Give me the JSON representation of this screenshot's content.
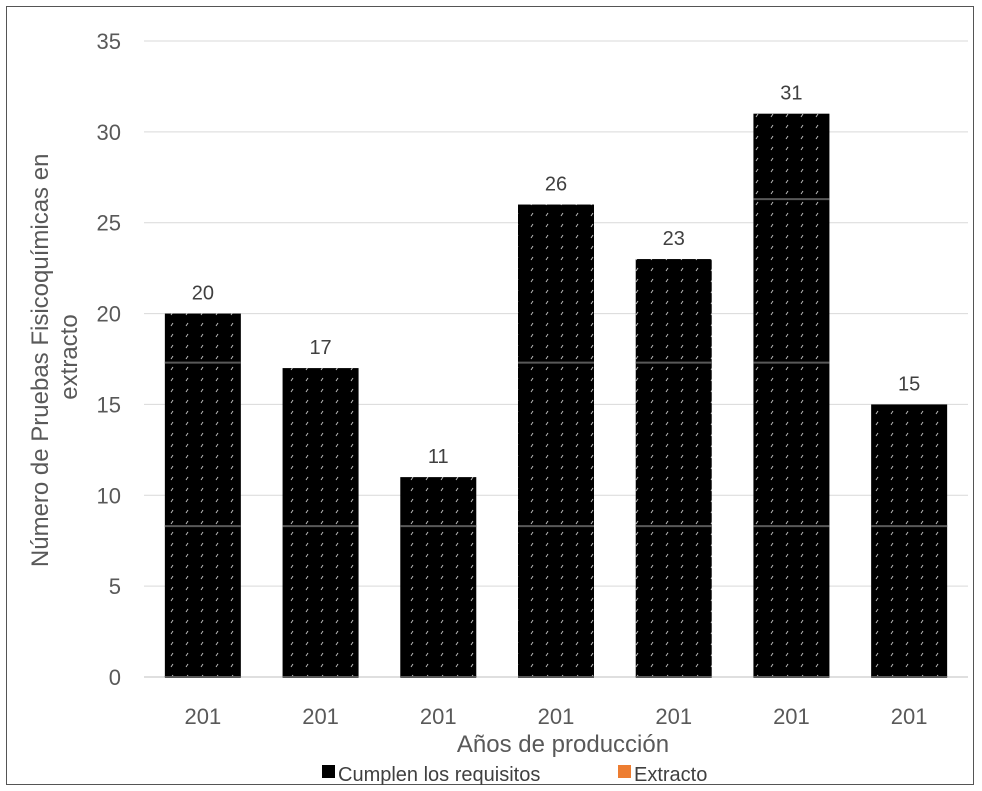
{
  "chart_data": {
    "type": "bar",
    "categories": [
      "201",
      "201",
      "201",
      "201",
      "201",
      "201",
      "201"
    ],
    "series": [
      {
        "name": "Cumplen los requisitos",
        "color": "#000000",
        "values": [
          20,
          17,
          11,
          26,
          23,
          31,
          15
        ]
      },
      {
        "name": "Extracto",
        "color": "#ED7D31",
        "values": [
          0,
          0,
          0,
          0,
          0,
          0,
          0
        ]
      }
    ],
    "data_labels": [
      "20",
      "17",
      "11",
      "26",
      "23",
      "31",
      "15"
    ],
    "xlabel": "Años de producción",
    "ylabel": "Número de Pruebas Fisicoquímicas en extracto",
    "ylabel_lines": [
      "Número de Pruebas Fisicoquímicas en",
      "extracto"
    ],
    "ylim": [
      0,
      35
    ],
    "yticks": [
      0,
      5,
      10,
      15,
      20,
      25,
      30,
      35
    ],
    "ytick_labels": [
      "0",
      "5",
      "10",
      "15",
      "20",
      "25",
      "30",
      "35"
    ],
    "grid": true,
    "legend_position": "bottom",
    "bar_pattern": "dotted"
  }
}
